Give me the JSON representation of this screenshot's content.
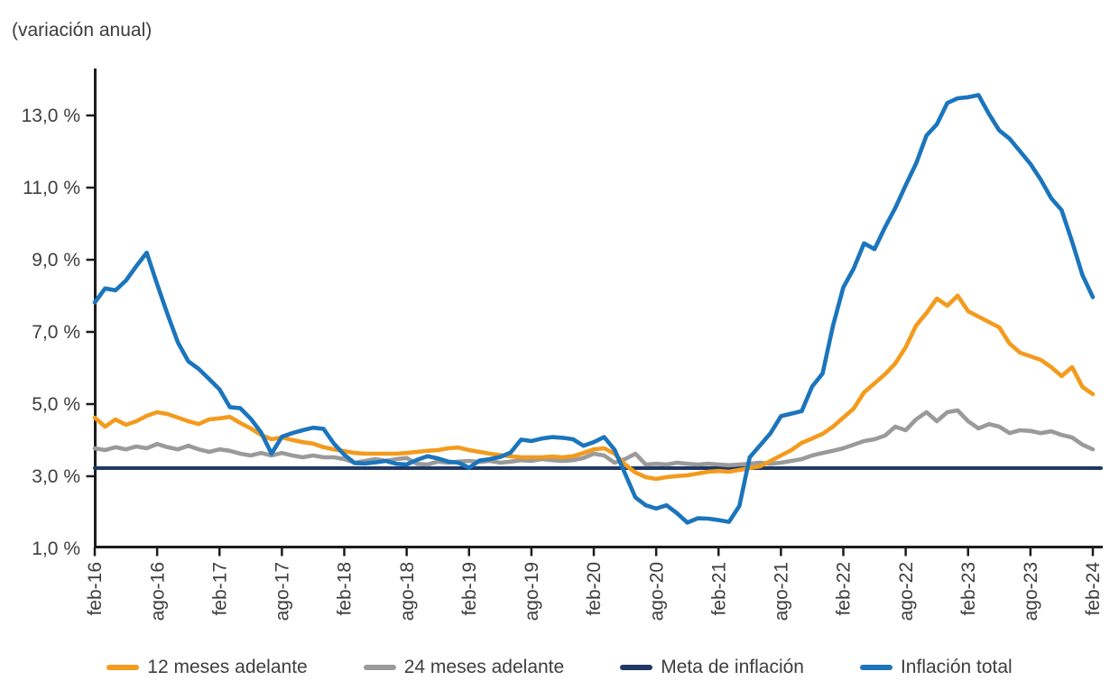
{
  "title": "(variación anual)",
  "chart_data": {
    "type": "line",
    "title": "(variación anual)",
    "x_unit": "month",
    "x_start": "feb-16",
    "x_end": "feb-24",
    "months_between_ticks": 6,
    "x_tick_labels": [
      "feb-16",
      "ago-16",
      "feb-17",
      "ago-17",
      "feb-18",
      "ago-18",
      "feb-19",
      "ago-19",
      "feb-20",
      "ago-20",
      "feb-21",
      "ago-21",
      "feb-22",
      "ago-22",
      "feb-23",
      "ago-23",
      "feb-24"
    ],
    "y_ticks": [
      {
        "label": "13,0 %",
        "value": 13.0
      },
      {
        "label": "11,0 %",
        "value": 11.0
      },
      {
        "label": "9,0 %",
        "value": 9.0
      },
      {
        "label": "7,0 %",
        "value": 7.0
      },
      {
        "label": "5,0 %",
        "value": 5.0
      },
      {
        "label": "3,0 %",
        "value": 3.0
      },
      {
        "label": "1,0 %",
        "value": 1.0
      }
    ],
    "ylim": [
      1.0,
      13.0
    ],
    "grid": false,
    "legend_position": "bottom",
    "axis_color": "#1c1c1c",
    "text_color": "#3e3e3e",
    "series": [
      {
        "name": "12 meses adelante",
        "color": "#F39B1D",
        "values": [
          4.4,
          4.15,
          4.35,
          4.2,
          4.3,
          4.45,
          4.55,
          4.5,
          4.4,
          4.3,
          4.22,
          4.35,
          4.38,
          4.42,
          4.25,
          4.1,
          3.92,
          3.8,
          3.85,
          3.78,
          3.72,
          3.68,
          3.58,
          3.52,
          3.47,
          3.42,
          3.4,
          3.4,
          3.4,
          3.4,
          3.42,
          3.45,
          3.48,
          3.5,
          3.55,
          3.57,
          3.5,
          3.45,
          3.4,
          3.36,
          3.33,
          3.3,
          3.3,
          3.3,
          3.32,
          3.3,
          3.33,
          3.42,
          3.52,
          3.55,
          3.4,
          3.1,
          2.88,
          2.75,
          2.7,
          2.75,
          2.78,
          2.8,
          2.85,
          2.9,
          2.92,
          2.9,
          2.95,
          3.0,
          3.05,
          3.2,
          3.35,
          3.5,
          3.7,
          3.82,
          3.95,
          4.15,
          4.4,
          4.65,
          5.1,
          5.35,
          5.6,
          5.9,
          6.35,
          6.95,
          7.3,
          7.7,
          7.5,
          7.78,
          7.35,
          7.2,
          7.05,
          6.9,
          6.45,
          6.2,
          6.1,
          6.0,
          5.8,
          5.55,
          5.8,
          5.25,
          5.05
        ]
      },
      {
        "name": "24 meses adelante",
        "color": "#9A9A9A",
        "values": [
          3.55,
          3.5,
          3.58,
          3.52,
          3.6,
          3.55,
          3.67,
          3.58,
          3.52,
          3.62,
          3.52,
          3.45,
          3.52,
          3.48,
          3.4,
          3.35,
          3.42,
          3.35,
          3.42,
          3.35,
          3.3,
          3.35,
          3.3,
          3.3,
          3.25,
          3.15,
          3.2,
          3.25,
          3.2,
          3.25,
          3.28,
          3.12,
          3.1,
          3.18,
          3.15,
          3.18,
          3.2,
          3.17,
          3.2,
          3.15,
          3.18,
          3.22,
          3.2,
          3.25,
          3.22,
          3.2,
          3.22,
          3.28,
          3.4,
          3.35,
          3.15,
          3.25,
          3.4,
          3.1,
          3.12,
          3.1,
          3.15,
          3.12,
          3.1,
          3.12,
          3.1,
          3.08,
          3.1,
          3.12,
          3.15,
          3.12,
          3.15,
          3.2,
          3.25,
          3.35,
          3.42,
          3.48,
          3.55,
          3.65,
          3.75,
          3.8,
          3.9,
          4.15,
          4.05,
          4.35,
          4.55,
          4.3,
          4.55,
          4.6,
          4.3,
          4.1,
          4.22,
          4.15,
          3.97,
          4.05,
          4.03,
          3.97,
          4.02,
          3.92,
          3.85,
          3.65,
          3.52
        ]
      },
      {
        "name": "Meta de inflación",
        "color": "#1F3864",
        "constant_value": 3.0
      },
      {
        "name": "Inflación total",
        "color": "#1B75BC",
        "values": [
          7.59,
          7.98,
          7.93,
          8.2,
          8.6,
          8.97,
          8.1,
          7.27,
          6.48,
          5.96,
          5.75,
          5.47,
          5.18,
          4.69,
          4.66,
          4.37,
          3.99,
          3.4,
          3.87,
          3.97,
          4.05,
          4.12,
          4.09,
          3.68,
          3.37,
          3.14,
          3.13,
          3.16,
          3.2,
          3.12,
          3.1,
          3.23,
          3.33,
          3.27,
          3.18,
          3.15,
          3.01,
          3.21,
          3.25,
          3.31,
          3.43,
          3.79,
          3.75,
          3.82,
          3.86,
          3.84,
          3.8,
          3.62,
          3.72,
          3.86,
          3.51,
          2.85,
          2.19,
          1.97,
          1.88,
          1.97,
          1.75,
          1.49,
          1.61,
          1.6,
          1.56,
          1.51,
          1.95,
          3.3,
          3.63,
          3.97,
          4.44,
          4.51,
          4.58,
          5.26,
          5.62,
          6.94,
          8.01,
          8.53,
          9.23,
          9.07,
          9.67,
          10.21,
          10.84,
          11.44,
          12.22,
          12.53,
          13.12,
          13.25,
          13.28,
          13.34,
          12.82,
          12.36,
          12.13,
          11.78,
          11.43,
          10.99,
          10.48,
          10.15,
          9.28,
          8.35,
          7.74
        ]
      }
    ]
  }
}
